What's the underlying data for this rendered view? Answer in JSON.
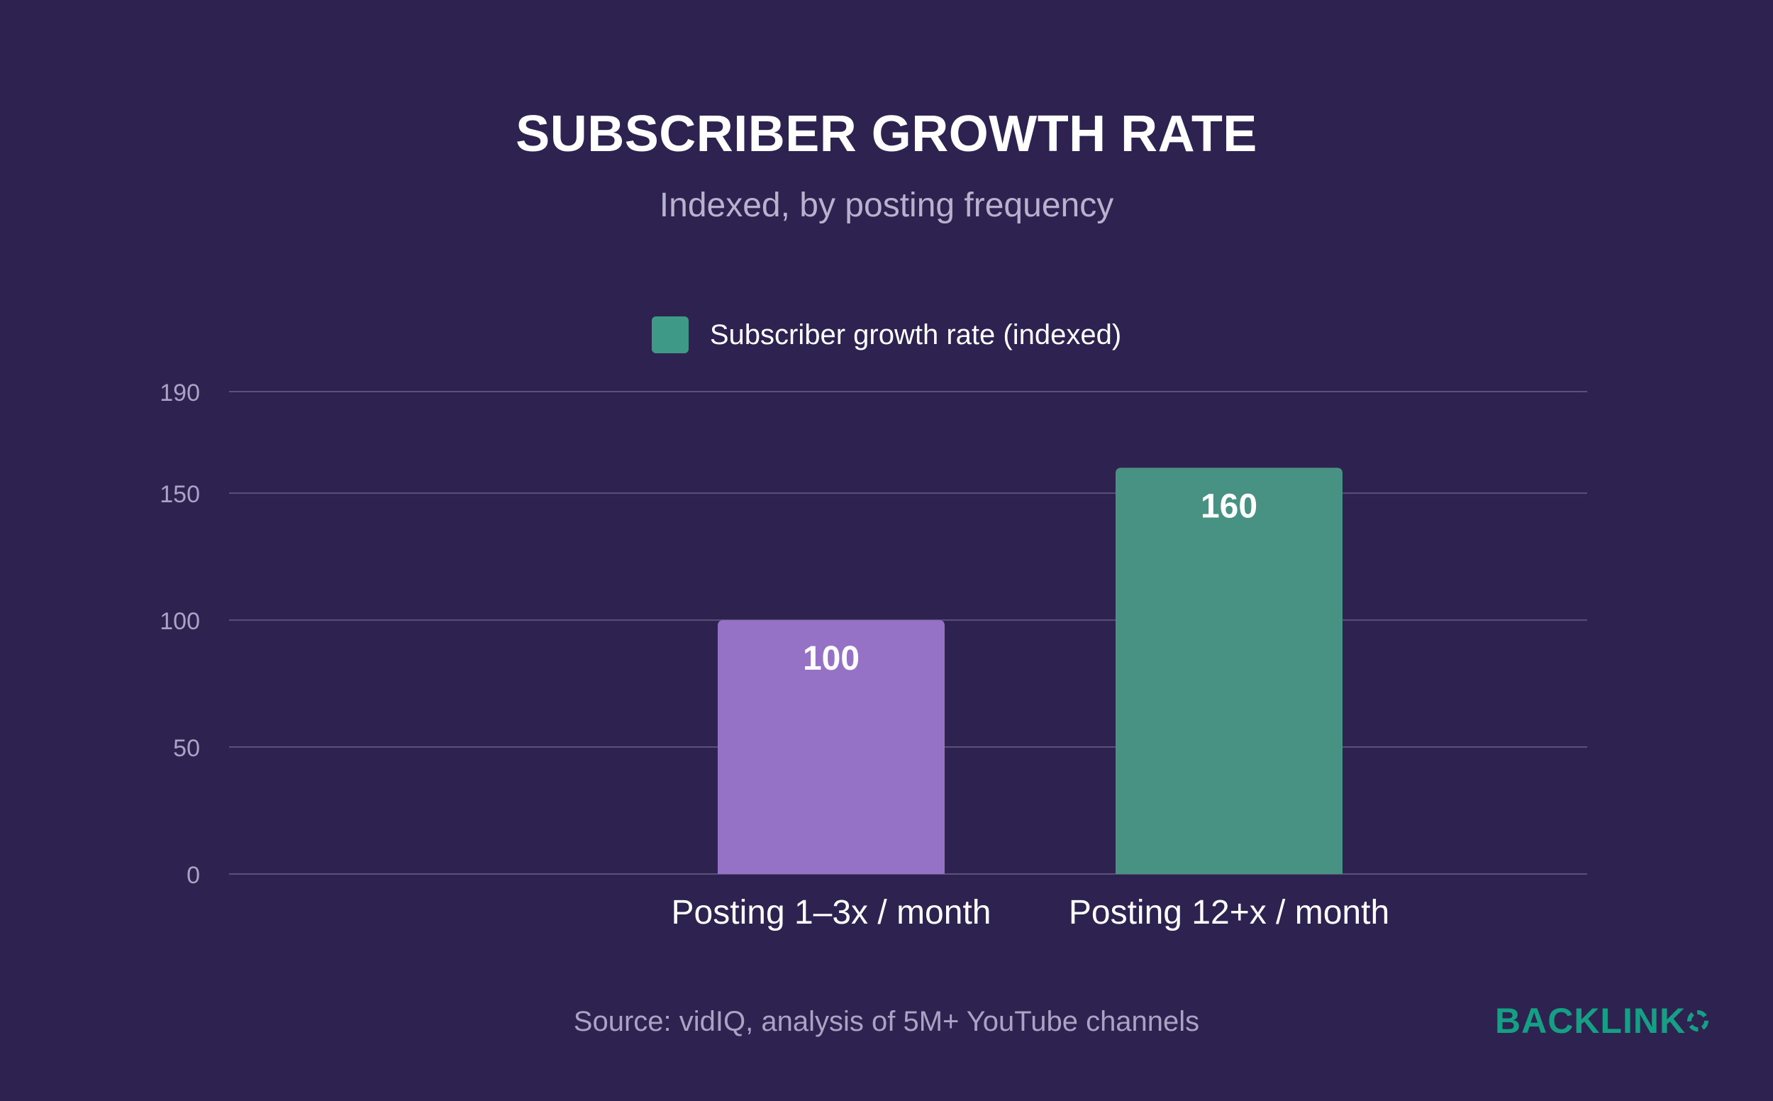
{
  "chart_data": {
    "type": "bar",
    "title": "SUBSCRIBER GROWTH RATE",
    "subtitle": "Indexed, by posting frequency",
    "categories": [
      "Posting 1–3x / month",
      "Posting 12+x / month"
    ],
    "series": [
      {
        "name": "Subscriber growth rate (indexed)",
        "values": [
          100,
          160
        ],
        "colors": [
          "#9672c6",
          "#479282"
        ]
      }
    ],
    "data_labels": [
      "100",
      "160"
    ],
    "yticks": [
      0,
      50,
      100,
      150,
      190
    ],
    "ylim": [
      0,
      190
    ],
    "xlabel": "",
    "ylabel": "",
    "grid": true,
    "legend_position": "top-center"
  },
  "legend": {
    "label": "Subscriber growth rate (indexed)",
    "color": "#3e9a86"
  },
  "source": "Source: vidIQ, analysis of 5M+ YouTube channels",
  "brand": {
    "logo_text": "BACKLINK",
    "color": "#15a085"
  },
  "colors": {
    "background": "#2e2250",
    "gridline": "#5a5078",
    "tick_text": "#aaa3c4"
  }
}
